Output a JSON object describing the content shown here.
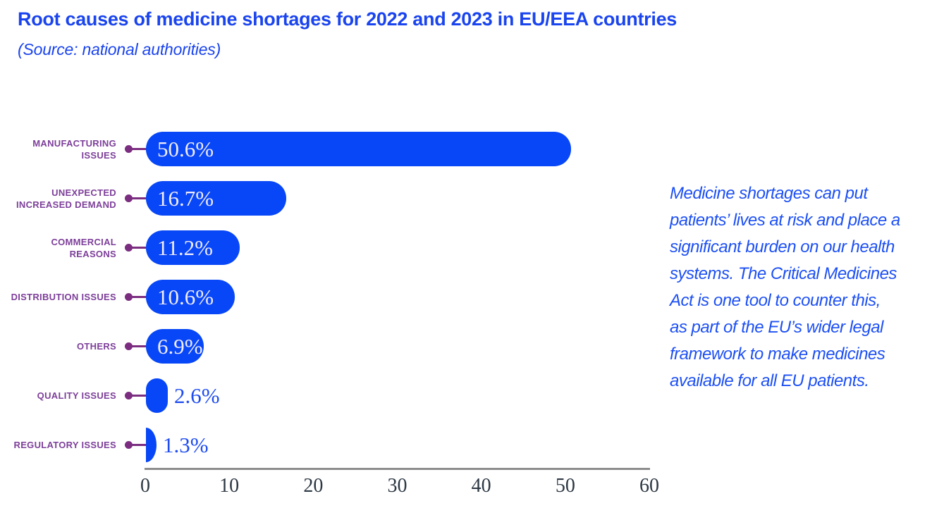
{
  "header": {
    "title": "Root causes of medicine shortages for 2022 and 2023 in EU/EEA countries",
    "subtitle": "(Source: national authorities)"
  },
  "annotation": {
    "lines": [
      "Medicine shortages can put",
      "patients’ lives at risk and place a",
      "significant burden on our health",
      "systems. The Critical Medicines",
      "Act is one tool to counter this,",
      "as part of the EU’s wider legal",
      "framework to make medicines",
      "available for all EU patients."
    ]
  },
  "chart_data": {
    "type": "bar",
    "orientation": "horizontal",
    "title": "Root causes of medicine shortages for 2022 and 2023 in EU/EEA countries",
    "subtitle": "(Source: national authorities)",
    "categories": [
      "MANUFACTURING ISSUES",
      "UNEXPECTED INCREASED DEMAND",
      "COMMERCIAL REASONS",
      "DISTRIBUTION ISSUES",
      "OTHERS",
      "QUALITY ISSUES",
      "REGULATORY ISSUES"
    ],
    "values": [
      50.6,
      16.7,
      11.2,
      10.6,
      6.9,
      2.6,
      1.3
    ],
    "value_labels": [
      "50.6%",
      "16.7%",
      "11.2%",
      "10.6%",
      "6.9%",
      "2.6%",
      "1.3%"
    ],
    "xlim": [
      0,
      60
    ],
    "xticks": [
      0,
      10,
      20,
      30,
      40,
      50,
      60
    ],
    "grid": false,
    "legend": "none",
    "colors": {
      "bar": "#0847f7",
      "value-inside": "#f2ecfb",
      "value-outside": "#1e4cf0",
      "label": "#7d3f9a",
      "dot": "#7b2d80",
      "axis": "#8d8d8d",
      "tick": "#2d3843",
      "title": "#1a44ee",
      "annotation": "#1d50f3"
    }
  }
}
